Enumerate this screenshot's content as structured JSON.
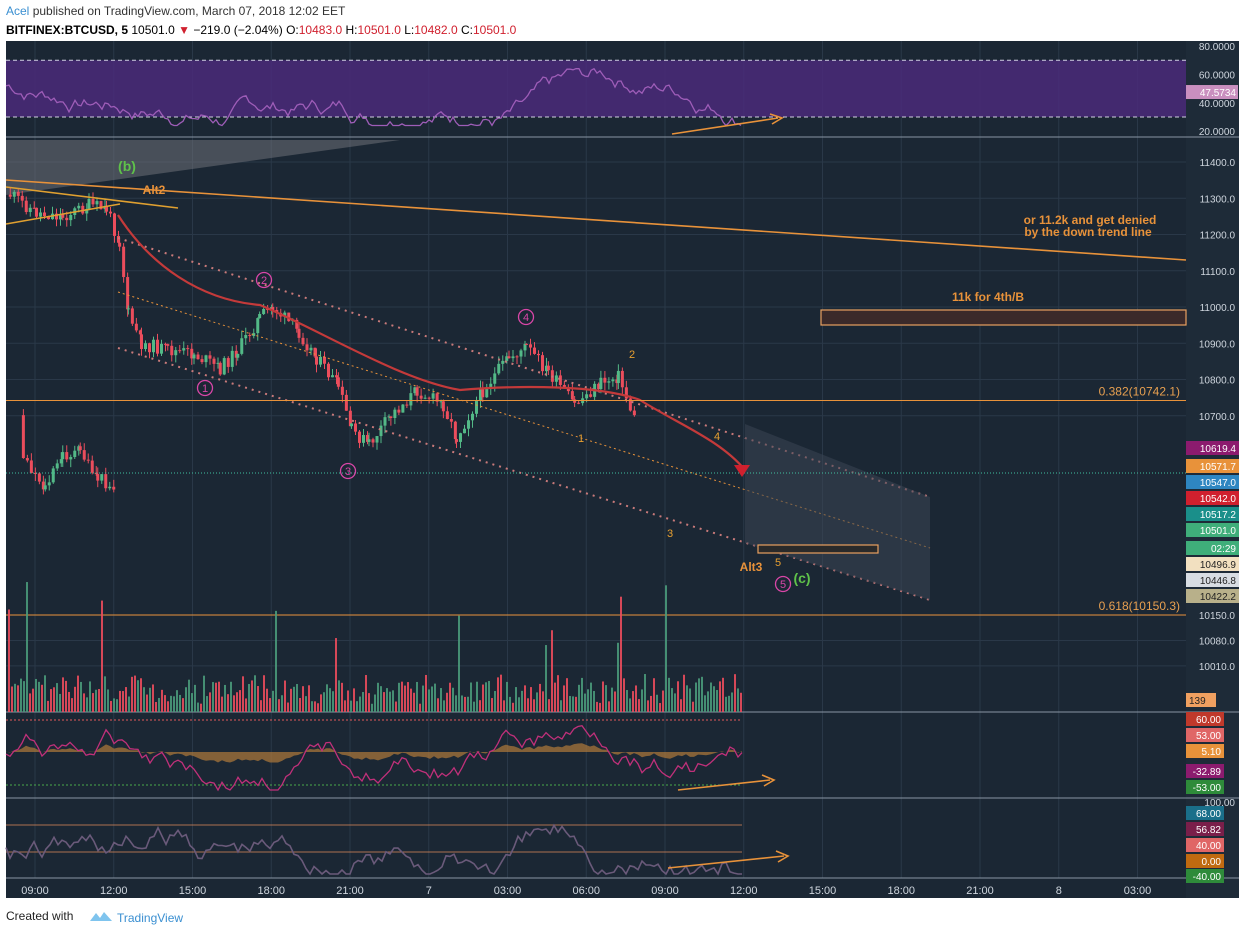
{
  "header": {
    "user": "Acel",
    "published": "published on TradingView.com, March 07, 2018 12:02 EET",
    "symbol": "BITFINEX:BTCUSD, 5",
    "last": "10501.0",
    "change_arrow": "▼",
    "change": "−219.0 (−2.04%)",
    "o_label": "O:",
    "o": "10483.0",
    "h_label": "H:",
    "h": "10501.0",
    "l_label": "L:",
    "l": "10482.0",
    "c_label": "C:",
    "c": "10501.0"
  },
  "footer": {
    "created": "Created with",
    "brand": "TradingView"
  },
  "colors": {
    "background": "#1b2734",
    "grid": "#2a3848",
    "up": "#53b987",
    "down": "#eb4d5c",
    "rsi_band": "#4a2a7a",
    "orange": "#e8923a",
    "rsi_line": "#9e5db8",
    "channel": "#c97a7a"
  },
  "chart_data": {
    "type": "candlestick",
    "symbol": "BITFINEX:BTCUSD",
    "interval": "5",
    "x_tick_labels": [
      "09:00",
      "12:00",
      "15:00",
      "18:00",
      "21:00",
      "7",
      "03:00",
      "06:00",
      "09:00",
      "12:00",
      "15:00",
      "18:00",
      "21:00",
      "8",
      "03:00"
    ],
    "price_axis_labels": [
      "11400.0",
      "11300.0",
      "11200.0",
      "11100.0",
      "11000.0",
      "10900.0",
      "10800.0",
      "10700.0",
      "10150.0",
      "10080.0",
      "10010.0"
    ],
    "price_approx": [
      {
        "t": "08:00",
        "p": 11310
      },
      {
        "t": "09:00",
        "p": 11260
      },
      {
        "t": "10:00",
        "p": 11250
      },
      {
        "t": "11:00",
        "p": 11280
      },
      {
        "t": "11:40",
        "p": 11270
      },
      {
        "t": "12:10",
        "p": 11180
      },
      {
        "t": "12:30",
        "p": 10980
      },
      {
        "t": "13:00",
        "p": 10900
      },
      {
        "t": "14:00",
        "p": 10880
      },
      {
        "t": "15:00",
        "p": 10870
      },
      {
        "t": "16:00",
        "p": 10830
      },
      {
        "t": "16:40",
        "p": 10880
      },
      {
        "t": "17:30",
        "p": 10970
      },
      {
        "t": "18:00",
        "p": 11000
      },
      {
        "t": "19:00",
        "p": 10930
      },
      {
        "t": "19:40",
        "p": 10860
      },
      {
        "t": "20:30",
        "p": 10780
      },
      {
        "t": "21:00",
        "p": 10660
      },
      {
        "t": "21:40",
        "p": 10620
      },
      {
        "t": "22:30",
        "p": 10700
      },
      {
        "t": "23:30",
        "p": 10770
      },
      {
        "t": "00:30",
        "p": 10730
      },
      {
        "t": "01:00",
        "p": 10640
      },
      {
        "t": "02:00",
        "p": 10770
      },
      {
        "t": "03:00",
        "p": 10860
      },
      {
        "t": "03:40",
        "p": 10890
      },
      {
        "t": "04:30",
        "p": 10820
      },
      {
        "t": "05:30",
        "p": 10730
      },
      {
        "t": "06:30",
        "p": 10790
      },
      {
        "t": "07:10",
        "p": 10810
      },
      {
        "t": "07:50",
        "p": 10680
      },
      {
        "t": "08:30",
        "p": 10590
      },
      {
        "t": "09:20",
        "p": 10500
      },
      {
        "t": "10:00",
        "p": 10590
      },
      {
        "t": "10:40",
        "p": 10600
      },
      {
        "t": "11:20",
        "p": 10530
      },
      {
        "t": "12:00",
        "p": 10501
      }
    ],
    "horizontal_levels": [
      {
        "label": "0.382(10742.1)",
        "value": 10742.1
      },
      {
        "label": "0.618(10150.3)",
        "value": 10150.3
      }
    ],
    "current_price": 10542.0,
    "price_tags": [
      {
        "value": "10619.4",
        "color": "#8c1b6e"
      },
      {
        "value": "10571.7",
        "color": "#e8923a"
      },
      {
        "value": "10547.0",
        "color": "#2e86c1"
      },
      {
        "value": "10542.0",
        "color": "#d0202e"
      },
      {
        "value": "10517.2",
        "color": "#1a8f8a"
      },
      {
        "value": "10501.0",
        "color": "#3fae7a"
      },
      {
        "value": "02:29",
        "color": "#3fae7a"
      },
      {
        "value": "10496.9",
        "color": "#f2e0c0"
      },
      {
        "value": "10446.8",
        "color": "#d8dde3"
      },
      {
        "value": "10422.2",
        "color": "#b8b08a"
      }
    ],
    "volume_tag": "139",
    "annotations": {
      "wave_b": "(b)",
      "wave_c": "(c)",
      "alt2": "Alt2",
      "alt3": "Alt3",
      "target_note_1": "or 11.2k and get denied",
      "target_note_2": "by the down trend line",
      "box_note": "11k for 4th/B",
      "circled_waves": [
        "1",
        "2",
        "3",
        "4",
        "5"
      ],
      "sub_waves": [
        "1",
        "2",
        "3",
        "4",
        "5"
      ]
    },
    "rsi_panel": {
      "axis_labels": [
        "80.0000",
        "60.0000",
        "40.0000",
        "20.0000"
      ],
      "current_value": "47.5734"
    },
    "oscillator_panel": {
      "tags": [
        {
          "value": "60.00",
          "color": "#c0392b"
        },
        {
          "value": "53.00",
          "color": "#e06666"
        },
        {
          "value": "5.10",
          "color": "#e8923a"
        },
        {
          "value": "-32.89",
          "color": "#8c1b6e"
        },
        {
          "value": "-53.00",
          "color": "#2e8b3a"
        }
      ]
    },
    "stoch_panel": {
      "axis_labels": [
        "100.00"
      ],
      "tags": [
        {
          "value": "68.00",
          "color": "#1a6f8a"
        },
        {
          "value": "56.82",
          "color": "#7a1f4a"
        },
        {
          "value": "40.00",
          "color": "#e06666"
        },
        {
          "value": "0.00",
          "color": "#c06a10"
        },
        {
          "value": "-40.00",
          "color": "#2e8b3a"
        }
      ]
    }
  }
}
